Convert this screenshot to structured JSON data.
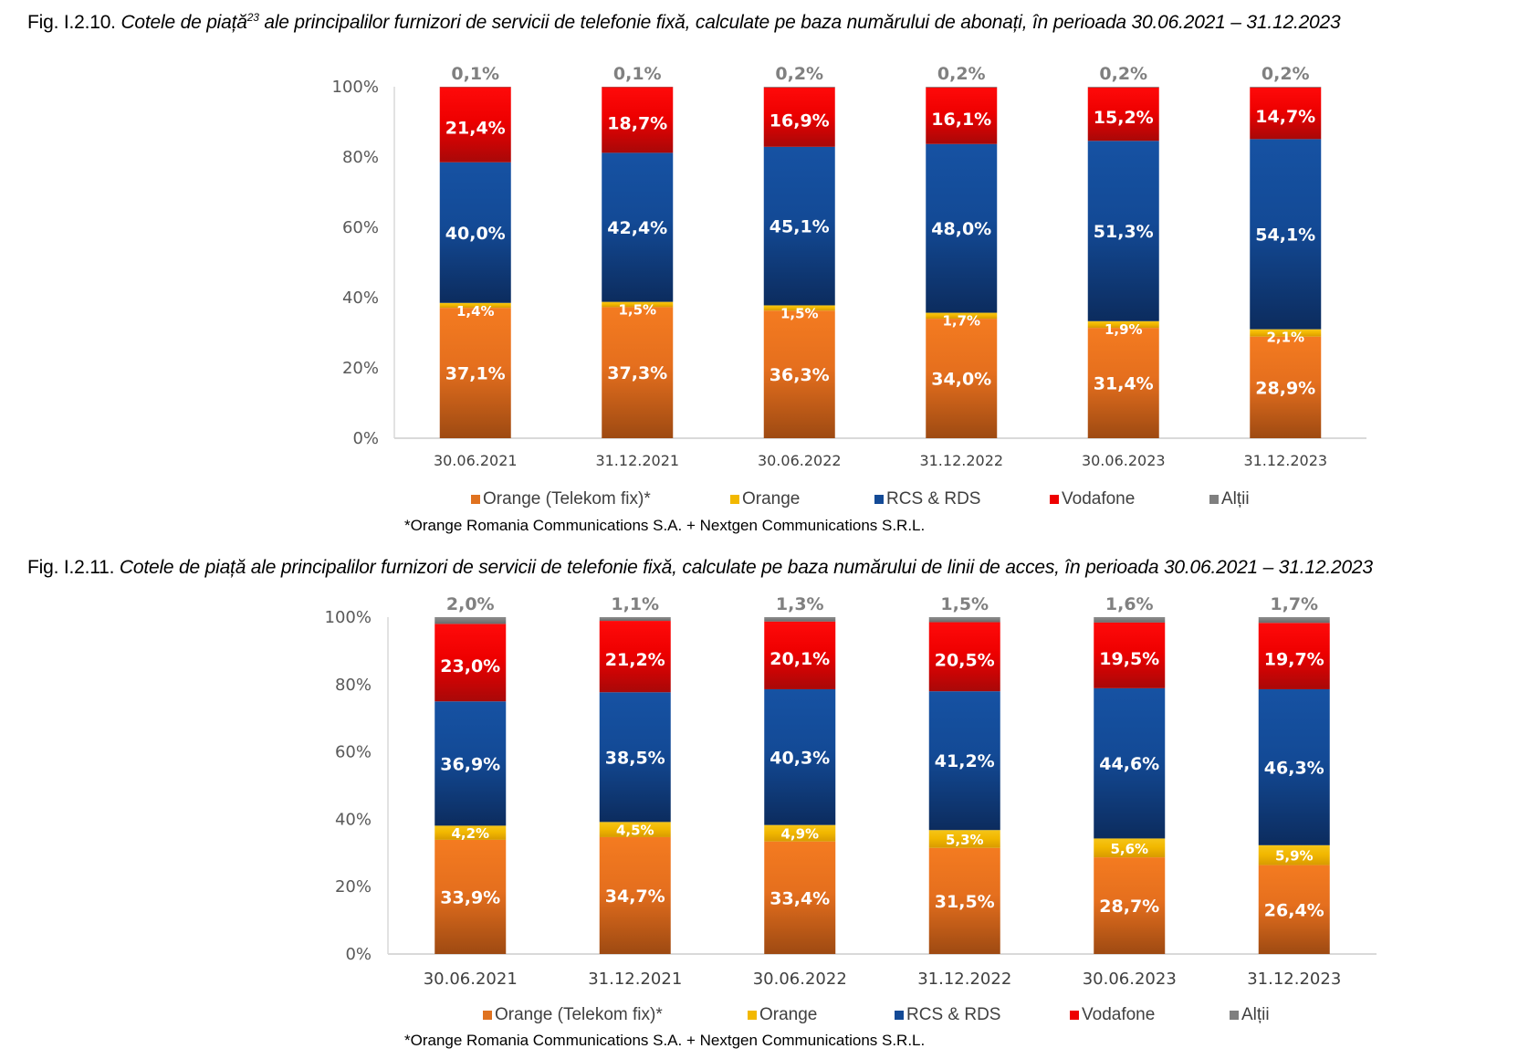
{
  "colors": {
    "orange_telekom": "#E0721F",
    "orange": "#F2B800",
    "rcs_rds": "#134A96",
    "vodafone": "#EE0000",
    "altii": "#7F7F7F"
  },
  "chart_data": [
    {
      "type": "bar",
      "stacked": true,
      "title_prefix": "Fig. I.2.10.",
      "title": "Cotele de piață",
      "title_sup": "23",
      "title_rest": " ale principalilor furnizori de servicii de telefonie fixă, calculate pe baza numărului de abonați, în perioada 30.06.2021 – 31.12.2023",
      "categories": [
        "30.06.2021",
        "31.12.2021",
        "30.06.2022",
        "31.12.2022",
        "30.06.2023",
        "31.12.2023"
      ],
      "yticks": [
        "0%",
        "20%",
        "40%",
        "60%",
        "80%",
        "100%"
      ],
      "ylim": [
        0,
        100
      ],
      "grid": false,
      "legend_position": "bottom",
      "series": [
        {
          "name": "Orange (Telekom fix)*",
          "key": "orange_telekom",
          "values": [
            37.1,
            37.3,
            36.3,
            34.0,
            31.4,
            28.9
          ],
          "labels": [
            "37,1%",
            "37,3%",
            "36,3%",
            "34,0%",
            "31,4%",
            "28,9%"
          ]
        },
        {
          "name": "Orange",
          "key": "orange",
          "values": [
            1.4,
            1.5,
            1.5,
            1.7,
            1.9,
            2.1
          ],
          "labels": [
            "1,4%",
            "1,5%",
            "1,5%",
            "1,7%",
            "1,9%",
            "2,1%"
          ]
        },
        {
          "name": "RCS & RDS",
          "key": "rcs_rds",
          "values": [
            40.0,
            42.4,
            45.1,
            48.0,
            51.3,
            54.1
          ],
          "labels": [
            "40,0%",
            "42,4%",
            "45,1%",
            "48,0%",
            "51,3%",
            "54,1%"
          ]
        },
        {
          "name": "Vodafone",
          "key": "vodafone",
          "values": [
            21.4,
            18.7,
            16.9,
            16.1,
            15.2,
            14.7
          ],
          "labels": [
            "21,4%",
            "18,7%",
            "16,9%",
            "16,1%",
            "15,2%",
            "14,7%"
          ]
        },
        {
          "name": "Alții",
          "key": "altii",
          "values": [
            0.1,
            0.1,
            0.2,
            0.2,
            0.2,
            0.2
          ],
          "labels": [
            "0,1%",
            "0,1%",
            "0,2%",
            "0,2%",
            "0,2%",
            "0,2%"
          ]
        }
      ],
      "legend": [
        "Orange (Telekom fix)*",
        "Orange",
        "RCS & RDS",
        "Vodafone",
        "Alții"
      ],
      "footnote": "*Orange Romania Communications S.A. + Nextgen Communications S.R.L."
    },
    {
      "type": "bar",
      "stacked": true,
      "title_prefix": "Fig. I.2.11.",
      "title": "Cotele de piață ale principalilor furnizori de servicii de telefonie fixă, calculate pe baza numărului de linii de acces, în perioada 30.06.2021 – 31.12.2023",
      "categories": [
        "30.06.2021",
        "31.12.2021",
        "30.06.2022",
        "31.12.2022",
        "30.06.2023",
        "31.12.2023"
      ],
      "yticks": [
        "0%",
        "20%",
        "40%",
        "60%",
        "80%",
        "100%"
      ],
      "ylim": [
        0,
        100
      ],
      "grid": false,
      "legend_position": "bottom",
      "series": [
        {
          "name": "Orange (Telekom fix)*",
          "key": "orange_telekom",
          "values": [
            33.9,
            34.7,
            33.4,
            31.5,
            28.7,
            26.4
          ],
          "labels": [
            "33,9%",
            "34,7%",
            "33,4%",
            "31,5%",
            "28,7%",
            "26,4%"
          ]
        },
        {
          "name": "Orange",
          "key": "orange",
          "values": [
            4.2,
            4.5,
            4.9,
            5.3,
            5.6,
            5.9
          ],
          "labels": [
            "4,2%",
            "4,5%",
            "4,9%",
            "5,3%",
            "5,6%",
            "5,9%"
          ]
        },
        {
          "name": "RCS & RDS",
          "key": "rcs_rds",
          "values": [
            36.9,
            38.5,
            40.3,
            41.2,
            44.6,
            46.3
          ],
          "labels": [
            "36,9%",
            "38,5%",
            "40,3%",
            "41,2%",
            "44,6%",
            "46,3%"
          ]
        },
        {
          "name": "Vodafone",
          "key": "vodafone",
          "values": [
            23.0,
            21.2,
            20.1,
            20.5,
            19.5,
            19.7
          ],
          "labels": [
            "23,0%",
            "21,2%",
            "20,1%",
            "20,5%",
            "19,5%",
            "19,7%"
          ]
        },
        {
          "name": "Alții",
          "key": "altii",
          "values": [
            2.0,
            1.1,
            1.3,
            1.5,
            1.6,
            1.7
          ],
          "labels": [
            "2,0%",
            "1,1%",
            "1,3%",
            "1,5%",
            "1,6%",
            "1,7%"
          ]
        }
      ],
      "legend": [
        "Orange (Telekom fix)*",
        "Orange",
        "RCS & RDS",
        "Vodafone",
        "Alții"
      ],
      "footnote": "*Orange Romania Communications S.A. + Nextgen Communications S.R.L."
    }
  ]
}
